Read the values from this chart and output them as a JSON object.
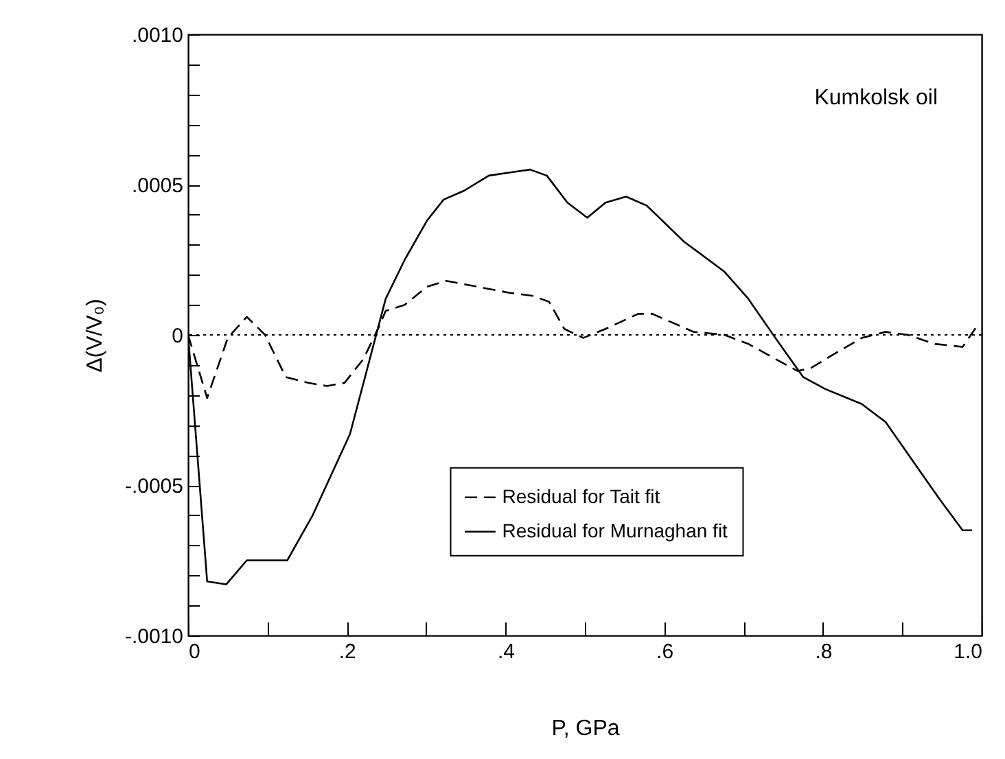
{
  "chart_data": {
    "type": "line",
    "xlabel": "P, GPa",
    "ylabel": "Δ(V/V₀)",
    "annotations": [
      "Kumkolsk oil"
    ],
    "xlim": [
      0,
      1.0
    ],
    "xticks": [
      {
        "value": 0,
        "label": "0"
      },
      {
        "value": 0.1,
        "label": null
      },
      {
        "value": 0.2,
        "label": ".2"
      },
      {
        "value": 0.3,
        "label": null
      },
      {
        "value": 0.4,
        "label": ".4"
      },
      {
        "value": 0.5,
        "label": null
      },
      {
        "value": 0.6,
        "label": ".6"
      },
      {
        "value": 0.7,
        "label": null
      },
      {
        "value": 0.8,
        "label": ".8"
      },
      {
        "value": 0.9,
        "label": null
      },
      {
        "value": 1.0,
        "label": "1.0"
      }
    ],
    "ylim": [
      -0.001,
      0.001
    ],
    "yticks": [
      {
        "value": -0.001,
        "label": "-.0010"
      },
      {
        "value": -0.0009,
        "label": null
      },
      {
        "value": -0.0008,
        "label": null
      },
      {
        "value": -0.0007,
        "label": null
      },
      {
        "value": -0.0006,
        "label": null
      },
      {
        "value": -0.0005,
        "label": "-.0005"
      },
      {
        "value": -0.0004,
        "label": null
      },
      {
        "value": -0.0003,
        "label": null
      },
      {
        "value": -0.0002,
        "label": null
      },
      {
        "value": -0.0001,
        "label": null
      },
      {
        "value": 0,
        "label": "0"
      },
      {
        "value": 0.0001,
        "label": null
      },
      {
        "value": 0.0002,
        "label": null
      },
      {
        "value": 0.0003,
        "label": null
      },
      {
        "value": 0.0004,
        "label": null
      },
      {
        "value": 0.0005,
        "label": ".0005"
      },
      {
        "value": 0.0006,
        "label": null
      },
      {
        "value": 0.0007,
        "label": null
      },
      {
        "value": 0.0008,
        "label": null
      },
      {
        "value": 0.0009,
        "label": null
      },
      {
        "value": 0.001,
        "label": ".0010"
      }
    ],
    "ref_lines": [
      {
        "axis": "y",
        "value": 0,
        "line_style": "dotted",
        "color": "#000000"
      }
    ],
    "legend": "bottom",
    "grid": false,
    "marker": "none",
    "series": [
      {
        "name": "Residual for Tait fit",
        "color": "#000000",
        "line_style": "dashed",
        "x": [
          0,
          0.024,
          0.05,
          0.074,
          0.097,
          0.123,
          0.152,
          0.175,
          0.197,
          0.221,
          0.241,
          0.249,
          0.273,
          0.301,
          0.325,
          0.365,
          0.405,
          0.434,
          0.455,
          0.474,
          0.498,
          0.526,
          0.567,
          0.585,
          0.637,
          0.676,
          0.706,
          0.74,
          0.768,
          0.785,
          0.81,
          0.849,
          0.879,
          0.907,
          0.941,
          0.976,
          0.997
        ],
        "values": [
          0,
          -0.00021,
          -1e-05,
          6e-05,
          0,
          -0.00014,
          -0.00016,
          -0.00017,
          -0.00016,
          -8e-05,
          3e-05,
          8e-05,
          0.0001,
          0.00016,
          0.00018,
          0.00016,
          0.00014,
          0.00013,
          0.00011,
          2e-05,
          -1e-05,
          2e-05,
          7e-05,
          7e-05,
          1e-05,
          0,
          -3e-05,
          -8e-05,
          -0.00012,
          -0.00011,
          -7e-05,
          -1e-05,
          1e-05,
          0,
          -3e-05,
          -4e-05,
          4e-05
        ]
      },
      {
        "name": "Residual for Murnaghan fit",
        "color": "#000000",
        "line_style": "solid",
        "x": [
          0,
          0.024,
          0.048,
          0.074,
          0.125,
          0.157,
          0.204,
          0.232,
          0.249,
          0.273,
          0.301,
          0.322,
          0.348,
          0.379,
          0.431,
          0.452,
          0.478,
          0.503,
          0.526,
          0.552,
          0.578,
          0.625,
          0.676,
          0.706,
          0.74,
          0.775,
          0.803,
          0.849,
          0.879,
          0.924,
          0.948,
          0.976,
          0.988
        ],
        "values": [
          0,
          -0.00082,
          -0.00083,
          -0.00075,
          -0.00075,
          -0.0006,
          -0.00033,
          -5e-05,
          0.00012,
          0.00025,
          0.00038,
          0.00045,
          0.00048,
          0.00053,
          0.00055,
          0.00053,
          0.00044,
          0.00039,
          0.00044,
          0.00046,
          0.00043,
          0.00031,
          0.00021,
          0.00012,
          -1e-05,
          -0.00014,
          -0.00018,
          -0.00023,
          -0.00029,
          -0.00046,
          -0.00055,
          -0.00065,
          -0.00065
        ]
      }
    ]
  }
}
